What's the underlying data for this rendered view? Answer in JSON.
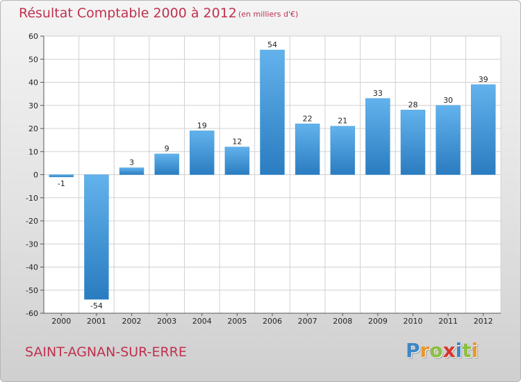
{
  "header": {
    "title": "Résultat Comptable 2000 à 2012",
    "subtitle": "(en milliers d'€)"
  },
  "footer": {
    "commune": "SAINT-AGNAN-SUR-ERRE",
    "logo_letters": [
      {
        "char": "P",
        "color": "#3d86c6"
      },
      {
        "char": "r",
        "color": "#e8972e"
      },
      {
        "char": "o",
        "color": "#8cbf3f"
      },
      {
        "char": "x",
        "color": "#d9342b"
      },
      {
        "char": "i",
        "color": "#3d86c6"
      },
      {
        "char": "t",
        "color": "#8cbf3f"
      },
      {
        "char": "i",
        "color": "#e8972e"
      }
    ]
  },
  "colors": {
    "title": "#c0304f",
    "bar_light": "#62b2ec",
    "bar_dark": "#2a7cc0",
    "grid": "#d0d0d0",
    "axis": "#555555"
  },
  "chart_data": {
    "type": "bar",
    "title": "Résultat Comptable 2000 à 2012",
    "subtitle": "(en milliers d'€)",
    "categories": [
      "2000",
      "2001",
      "2002",
      "2003",
      "2004",
      "2005",
      "2006",
      "2007",
      "2008",
      "2009",
      "2010",
      "2011",
      "2012"
    ],
    "values": [
      -1,
      -54,
      3,
      9,
      19,
      12,
      54,
      22,
      21,
      33,
      28,
      30,
      39
    ],
    "data_labels": [
      "-1",
      "-54",
      "3",
      "9",
      "19",
      "12",
      "54",
      "22",
      "21",
      "33",
      "28",
      "30",
      "39"
    ],
    "yticks": [
      60,
      50,
      40,
      30,
      20,
      10,
      0,
      -10,
      -20,
      -30,
      -40,
      -50,
      -60
    ],
    "ylim": [
      -60,
      60
    ],
    "grid": true,
    "legend": "none"
  }
}
